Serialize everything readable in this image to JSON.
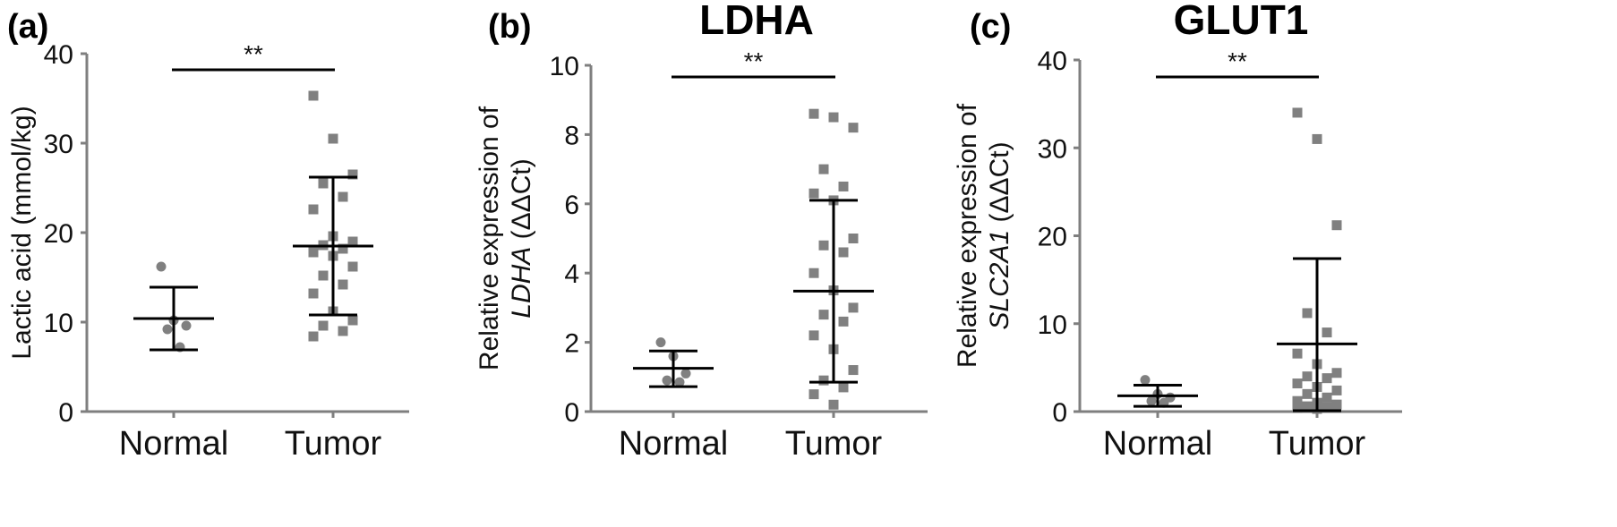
{
  "chart_data": [
    {
      "type": "scatter",
      "panel_label": "(a)",
      "title": "",
      "ylabel": "Lactic acid (mmol/kg)",
      "ylabel_italic": "",
      "ylabel_suffix": "",
      "ylim": [
        0,
        40
      ],
      "yticks": [
        0,
        10,
        20,
        30,
        40
      ],
      "categories": [
        "Normal",
        "Tumor"
      ],
      "significance": "**",
      "groups": [
        {
          "name": "Normal",
          "marker": "circle",
          "color": "#808080",
          "values": [
            16.2,
            10.2,
            9.6,
            9.2,
            7.2
          ],
          "mean": 10.4,
          "upper": 13.9,
          "lower": 6.9
        },
        {
          "name": "Tumor",
          "marker": "square",
          "color": "#808080",
          "values": [
            35.3,
            30.5,
            26.5,
            25.5,
            24.0,
            22.6,
            19.6,
            19.0,
            18.6,
            18.2,
            17.8,
            17.4,
            16.2,
            15.2,
            14.2,
            13.2,
            11.2,
            10.2,
            9.6,
            9.0,
            8.4
          ],
          "mean": 18.5,
          "upper": 26.2,
          "lower": 10.8
        }
      ]
    },
    {
      "type": "scatter",
      "panel_label": "(b)",
      "title": "LDHA",
      "ylabel": "Relative expression of",
      "ylabel_italic": "LDHA",
      "ylabel_suffix": " (ΔΔCt)",
      "ylim": [
        0,
        10
      ],
      "yticks": [
        0,
        2,
        4,
        6,
        8,
        10
      ],
      "categories": [
        "Normal",
        "Tumor"
      ],
      "significance": "**",
      "groups": [
        {
          "name": "Normal",
          "marker": "circle",
          "color": "#808080",
          "values": [
            2.0,
            1.6,
            1.1,
            0.9,
            0.85
          ],
          "mean": 1.25,
          "upper": 1.75,
          "lower": 0.72
        },
        {
          "name": "Tumor",
          "marker": "square",
          "color": "#808080",
          "values": [
            8.6,
            8.5,
            8.2,
            7.0,
            6.5,
            6.3,
            6.1,
            5.0,
            4.8,
            4.6,
            4.0,
            3.5,
            3.0,
            2.8,
            2.6,
            2.2,
            1.8,
            1.2,
            0.9,
            0.7,
            0.5,
            0.2
          ],
          "mean": 3.48,
          "upper": 6.1,
          "lower": 0.85
        }
      ]
    },
    {
      "type": "scatter",
      "panel_label": "(c)",
      "title": "GLUT1",
      "ylabel": "Relative expression of",
      "ylabel_italic": "SLC2A1",
      "ylabel_suffix": " (ΔΔCt)",
      "ylim": [
        0,
        40
      ],
      "yticks": [
        0,
        10,
        20,
        30,
        40
      ],
      "categories": [
        "Normal",
        "Tumor"
      ],
      "significance": "**",
      "groups": [
        {
          "name": "Normal",
          "marker": "circle",
          "color": "#808080",
          "values": [
            3.6,
            2.0,
            1.6,
            1.2,
            1.0
          ],
          "mean": 1.8,
          "upper": 3.0,
          "lower": 0.6
        },
        {
          "name": "Tumor",
          "marker": "square",
          "color": "#808080",
          "values": [
            34.0,
            31.0,
            21.2,
            11.2,
            9.0,
            6.6,
            5.4,
            4.4,
            4.0,
            3.8,
            3.2,
            2.8,
            2.4,
            2.0,
            1.6,
            1.2,
            1.0,
            0.8,
            0.6,
            0.5,
            0.4,
            0.3
          ],
          "mean": 7.7,
          "upper": 17.4,
          "lower": 0.1
        }
      ]
    }
  ]
}
